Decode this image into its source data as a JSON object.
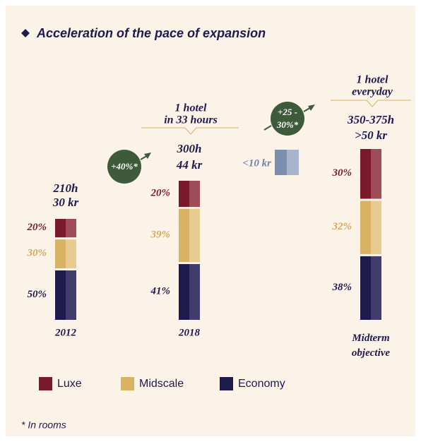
{
  "chart_data": {
    "type": "bar",
    "stacked": true,
    "title": "Acceleration of the pace of expansion",
    "categories": [
      "2012",
      "2018",
      "Midterm objective"
    ],
    "bar_labels": [
      [
        "210h",
        "30 kr"
      ],
      [
        "300h",
        "44 kr"
      ],
      [
        "350-375h",
        ">50 kr"
      ]
    ],
    "series": [
      {
        "name": "Luxe",
        "color": "#7a1a2a",
        "light": "#9e4c55",
        "values": [
          20,
          20,
          30
        ],
        "value_labels": [
          "20%",
          "20%",
          "30%"
        ]
      },
      {
        "name": "Midscale",
        "color": "#d9b264",
        "light": "#e8cb91",
        "values": [
          30,
          39,
          32
        ],
        "value_labels": [
          "30%",
          "39%",
          "32%"
        ]
      },
      {
        "name": "Economy",
        "color": "#1f1a4d",
        "light": "#403c6c",
        "values": [
          50,
          41,
          38
        ],
        "value_labels": [
          "50%",
          "41%",
          "38%"
        ]
      }
    ],
    "annotations": {
      "pace_2018": [
        "1 hotel",
        "in 33 hours"
      ],
      "pace_midterm": [
        "1 hotel",
        "everyday"
      ],
      "growth_1": [
        "+40%*"
      ],
      "growth_2": [
        "+25 -",
        "30%*"
      ],
      "small_bar_label": "<10 kr"
    },
    "footnote": "* In rooms"
  }
}
